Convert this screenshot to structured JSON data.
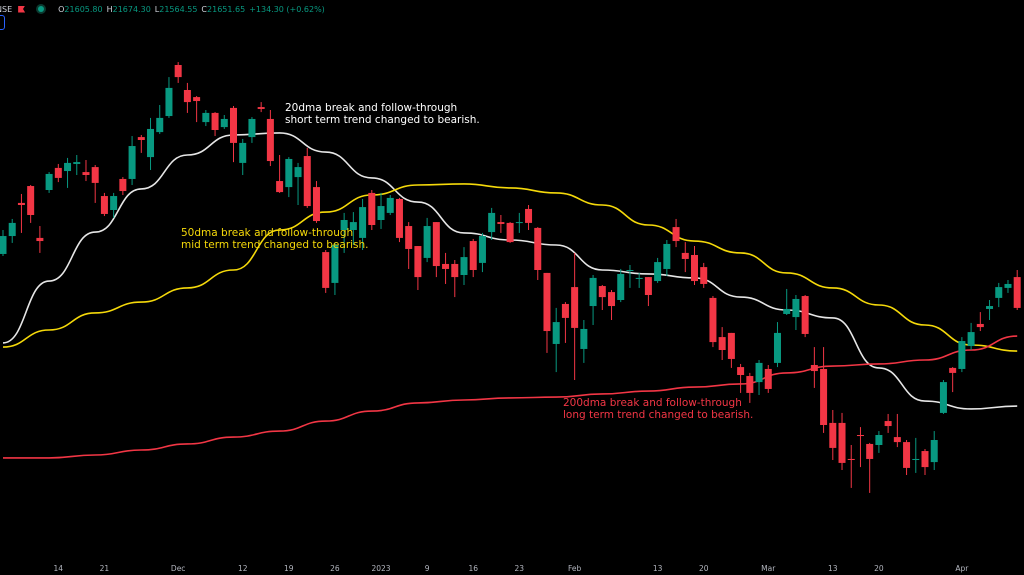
{
  "header": {
    "symbol": "NSE",
    "open_label": "O",
    "open": "21605.80",
    "high_label": "H",
    "high": "21674.30",
    "low_label": "L",
    "low": "21564.55",
    "close_label": "C",
    "close": "21651.65",
    "change": "+134.30 (+0.62%)",
    "flag_icon": "flag-icon",
    "status_icon": "market-open-dot-icon"
  },
  "annotations": {
    "dma20": [
      "20dma break and follow-through",
      "short term trend changed to bearish."
    ],
    "dma50": [
      "50dma break and follow-through",
      "mid term trend changed to bearish."
    ],
    "dma200": [
      "200dma break and follow-through",
      "long term trend changed to bearish."
    ]
  },
  "chart_data": {
    "type": "candlestick",
    "colors": {
      "up": "#089981",
      "down": "#f23645",
      "dma20": "#e6e6e6",
      "dma50": "#f5d90a",
      "dma200": "#f23645",
      "background": "#000000"
    },
    "ylim": [
      16420,
      19180
    ],
    "grid": false,
    "x_ticks": [
      {
        "label": "14",
        "candle": 6
      },
      {
        "label": "21",
        "candle": 11
      },
      {
        "label": "Dec",
        "candle": 19
      },
      {
        "label": "12",
        "candle": 26
      },
      {
        "label": "19",
        "candle": 31
      },
      {
        "label": "26",
        "candle": 36
      },
      {
        "label": "2023",
        "candle": 41
      },
      {
        "label": "9",
        "candle": 46
      },
      {
        "label": "16",
        "candle": 51
      },
      {
        "label": "23",
        "candle": 56
      },
      {
        "label": "Feb",
        "candle": 62
      },
      {
        "label": "13",
        "candle": 71
      },
      {
        "label": "20",
        "candle": 76
      },
      {
        "label": "Mar",
        "candle": 83
      },
      {
        "label": "13",
        "candle": 90
      },
      {
        "label": "20",
        "candle": 95
      },
      {
        "label": "Apr",
        "candle": 104
      }
    ],
    "ohlc": [
      [
        17961,
        18076,
        17951,
        18047
      ],
      [
        18047,
        18129,
        18014,
        18110
      ],
      [
        18206,
        18249,
        18062,
        18196
      ],
      [
        18287,
        18292,
        18110,
        18148
      ],
      [
        18038,
        18095,
        17966,
        18023
      ],
      [
        18268,
        18354,
        18254,
        18345
      ],
      [
        18374,
        18393,
        18306,
        18326
      ],
      [
        18359,
        18422,
        18278,
        18398
      ],
      [
        18393,
        18436,
        18340,
        18402
      ],
      [
        18354,
        18412,
        18311,
        18340
      ],
      [
        18378,
        18388,
        18206,
        18302
      ],
      [
        18239,
        18254,
        18143,
        18153
      ],
      [
        18172,
        18254,
        18134,
        18239
      ],
      [
        18321,
        18330,
        18244,
        18263
      ],
      [
        18321,
        18527,
        18292,
        18479
      ],
      [
        18522,
        18532,
        18446,
        18508
      ],
      [
        18426,
        18614,
        18364,
        18561
      ],
      [
        18546,
        18676,
        18537,
        18614
      ],
      [
        18623,
        18810,
        18614,
        18758
      ],
      [
        18868,
        18882,
        18782,
        18810
      ],
      [
        18748,
        18782,
        18638,
        18690
      ],
      [
        18714,
        18719,
        18594,
        18695
      ],
      [
        18594,
        18652,
        18575,
        18638
      ],
      [
        18638,
        18642,
        18527,
        18556
      ],
      [
        18570,
        18628,
        18561,
        18609
      ],
      [
        18662,
        18671,
        18402,
        18494
      ],
      [
        18398,
        18513,
        18340,
        18494
      ],
      [
        18522,
        18618,
        18494,
        18609
      ],
      [
        18666,
        18690,
        18642,
        18657
      ],
      [
        18609,
        18652,
        18383,
        18407
      ],
      [
        18311,
        18436,
        18254,
        18258
      ],
      [
        18282,
        18426,
        18234,
        18417
      ],
      [
        18330,
        18398,
        18196,
        18378
      ],
      [
        18431,
        18470,
        18182,
        18191
      ],
      [
        18282,
        18311,
        18110,
        18119
      ],
      [
        17970,
        17980,
        17774,
        17798
      ],
      [
        17822,
        18014,
        17764,
        18004
      ],
      [
        18076,
        18158,
        17966,
        18124
      ],
      [
        18076,
        18162,
        18004,
        18114
      ],
      [
        18038,
        18225,
        17980,
        18186
      ],
      [
        18254,
        18268,
        18076,
        18100
      ],
      [
        18124,
        18254,
        18081,
        18191
      ],
      [
        18158,
        18244,
        18148,
        18230
      ],
      [
        18225,
        18230,
        18018,
        18038
      ],
      [
        18095,
        18114,
        17889,
        17985
      ],
      [
        17999,
        17999,
        17788,
        17850
      ],
      [
        17942,
        18134,
        17922,
        18095
      ],
      [
        18114,
        18114,
        17850,
        17903
      ],
      [
        17913,
        17966,
        17817,
        17889
      ],
      [
        17913,
        17932,
        17754,
        17850
      ],
      [
        17860,
        17994,
        17812,
        17946
      ],
      [
        18023,
        18033,
        17850,
        17884
      ],
      [
        17918,
        18062,
        17874,
        18047
      ],
      [
        18066,
        18182,
        18028,
        18158
      ],
      [
        18114,
        18148,
        18062,
        18105
      ],
      [
        18110,
        18114,
        18014,
        18018
      ],
      [
        18110,
        18158,
        18062,
        18114
      ],
      [
        18177,
        18196,
        18076,
        18110
      ],
      [
        18086,
        18090,
        17836,
        17884
      ],
      [
        17870,
        17870,
        17486,
        17591
      ],
      [
        17529,
        17702,
        17394,
        17634
      ],
      [
        17721,
        17730,
        17534,
        17654
      ],
      [
        17802,
        17966,
        17356,
        17606
      ],
      [
        17505,
        17644,
        17438,
        17601
      ],
      [
        17711,
        17860,
        17620,
        17846
      ],
      [
        17807,
        17812,
        17692,
        17754
      ],
      [
        17778,
        17788,
        17644,
        17711
      ],
      [
        17740,
        17889,
        17730,
        17865
      ],
      [
        17879,
        17908,
        17798,
        17884
      ],
      [
        17841,
        17870,
        17798,
        17846
      ],
      [
        17850,
        17850,
        17711,
        17764
      ],
      [
        17831,
        17942,
        17822,
        17922
      ],
      [
        17889,
        18028,
        17855,
        18009
      ],
      [
        18090,
        18129,
        17994,
        18023
      ],
      [
        17966,
        18018,
        17874,
        17937
      ],
      [
        17956,
        17999,
        17812,
        17831
      ],
      [
        17898,
        17918,
        17798,
        17817
      ],
      [
        17750,
        17759,
        17514,
        17538
      ],
      [
        17562,
        17610,
        17452,
        17500
      ],
      [
        17582,
        17582,
        17414,
        17457
      ],
      [
        17418,
        17433,
        17294,
        17380
      ],
      [
        17375,
        17390,
        17246,
        17294
      ],
      [
        17346,
        17452,
        17284,
        17438
      ],
      [
        17409,
        17428,
        17294,
        17313
      ],
      [
        17438,
        17634,
        17418,
        17582
      ],
      [
        17673,
        17793,
        17668,
        17697
      ],
      [
        17658,
        17764,
        17596,
        17745
      ],
      [
        17759,
        17764,
        17562,
        17577
      ],
      [
        17428,
        17514,
        17318,
        17399
      ],
      [
        17409,
        17514,
        17102,
        17140
      ],
      [
        17150,
        17212,
        16972,
        17030
      ],
      [
        17150,
        17198,
        16924,
        16958
      ],
      [
        16977,
        17044,
        16838,
        16972
      ],
      [
        17092,
        17130,
        16938,
        17087
      ],
      [
        17049,
        17054,
        16814,
        16977
      ],
      [
        17044,
        17111,
        17006,
        17092
      ],
      [
        17159,
        17193,
        17102,
        17135
      ],
      [
        17082,
        17193,
        17034,
        17058
      ],
      [
        17058,
        17068,
        16900,
        16934
      ],
      [
        16972,
        17078,
        16910,
        16977
      ],
      [
        17015,
        17025,
        16900,
        16938
      ],
      [
        16962,
        17111,
        16924,
        17068
      ],
      [
        17198,
        17356,
        17193,
        17346
      ],
      [
        17414,
        17418,
        17298,
        17390
      ],
      [
        17409,
        17562,
        17394,
        17543
      ],
      [
        17519,
        17630,
        17500,
        17586
      ],
      [
        17625,
        17682,
        17591,
        17610
      ],
      [
        17697,
        17740,
        17644,
        17711
      ],
      [
        17750,
        17822,
        17706,
        17802
      ],
      [
        17798,
        17836,
        17774,
        17817
      ],
      [
        17850,
        17884,
        17692,
        17702
      ]
    ],
    "ma_sample_step": 5,
    "series": [
      {
        "key": "dma20",
        "values": [
          17534,
          17831,
          18066,
          18273,
          18436,
          18532,
          18542,
          18450,
          18326,
          18210,
          18062,
          18028,
          18004,
          17884,
          17865,
          17846,
          17754,
          17692,
          17654,
          17414,
          17255,
          17217,
          17231
        ]
      },
      {
        "key": "dma50",
        "values": [
          17514,
          17596,
          17678,
          17730,
          17798,
          17884,
          18076,
          18162,
          18244,
          18292,
          18297,
          18278,
          18254,
          18196,
          18100,
          18023,
          17966,
          17870,
          17798,
          17716,
          17620,
          17524,
          17495
        ]
      },
      {
        "key": "dma200",
        "values": [
          16982,
          16982,
          16996,
          17020,
          17049,
          17082,
          17111,
          17159,
          17207,
          17246,
          17260,
          17270,
          17274,
          17289,
          17303,
          17322,
          17337,
          17390,
          17423,
          17433,
          17452,
          17500,
          17567
        ]
      }
    ]
  }
}
